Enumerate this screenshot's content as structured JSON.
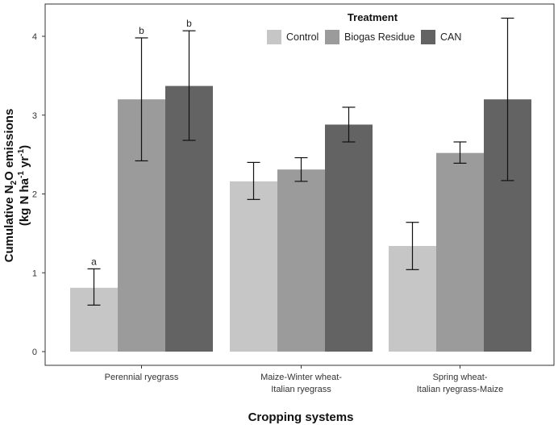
{
  "chart_data": {
    "type": "bar",
    "title": "",
    "xlabel": "Cropping systems",
    "ylabel": {
      "line1_pre": "Cumulative N",
      "line1_sub": "2",
      "line1_post": "O emissions",
      "line2_pre": "(kg N ha",
      "line2_sup1": "-1",
      "line2_mid": " yr",
      "line2_sup2": "-1",
      "line2_post": ")"
    },
    "ylim": [
      0,
      4.2
    ],
    "yticks": [
      "0",
      "1",
      "2",
      "3",
      "4"
    ],
    "categories": [
      [
        "Perennial ryegrass"
      ],
      [
        "Maize-Winter wheat-",
        "Italian ryegrass"
      ],
      [
        "Spring wheat-",
        "Italian ryegrass-Maize"
      ]
    ],
    "legend": {
      "title": "Treatment",
      "position": "top-right"
    },
    "series": [
      {
        "name": "Control",
        "color": "#c6c6c6",
        "values": [
          0.81,
          2.16,
          1.34
        ],
        "err_low": [
          0.59,
          1.93,
          1.04
        ],
        "err_high": [
          1.05,
          2.4,
          1.64
        ],
        "labels": [
          "a",
          "",
          ""
        ]
      },
      {
        "name": "Biogas Residue",
        "color": "#9b9b9b",
        "values": [
          3.2,
          2.31,
          2.52
        ],
        "err_low": [
          2.42,
          2.16,
          2.39
        ],
        "err_high": [
          3.98,
          2.46,
          2.66
        ],
        "labels": [
          "b",
          "",
          ""
        ]
      },
      {
        "name": "CAN",
        "color": "#636363",
        "values": [
          3.37,
          2.88,
          3.2
        ],
        "err_low": [
          2.68,
          2.66,
          2.17
        ],
        "err_high": [
          4.07,
          3.1,
          4.23
        ],
        "labels": [
          "b",
          "",
          ""
        ]
      }
    ]
  }
}
